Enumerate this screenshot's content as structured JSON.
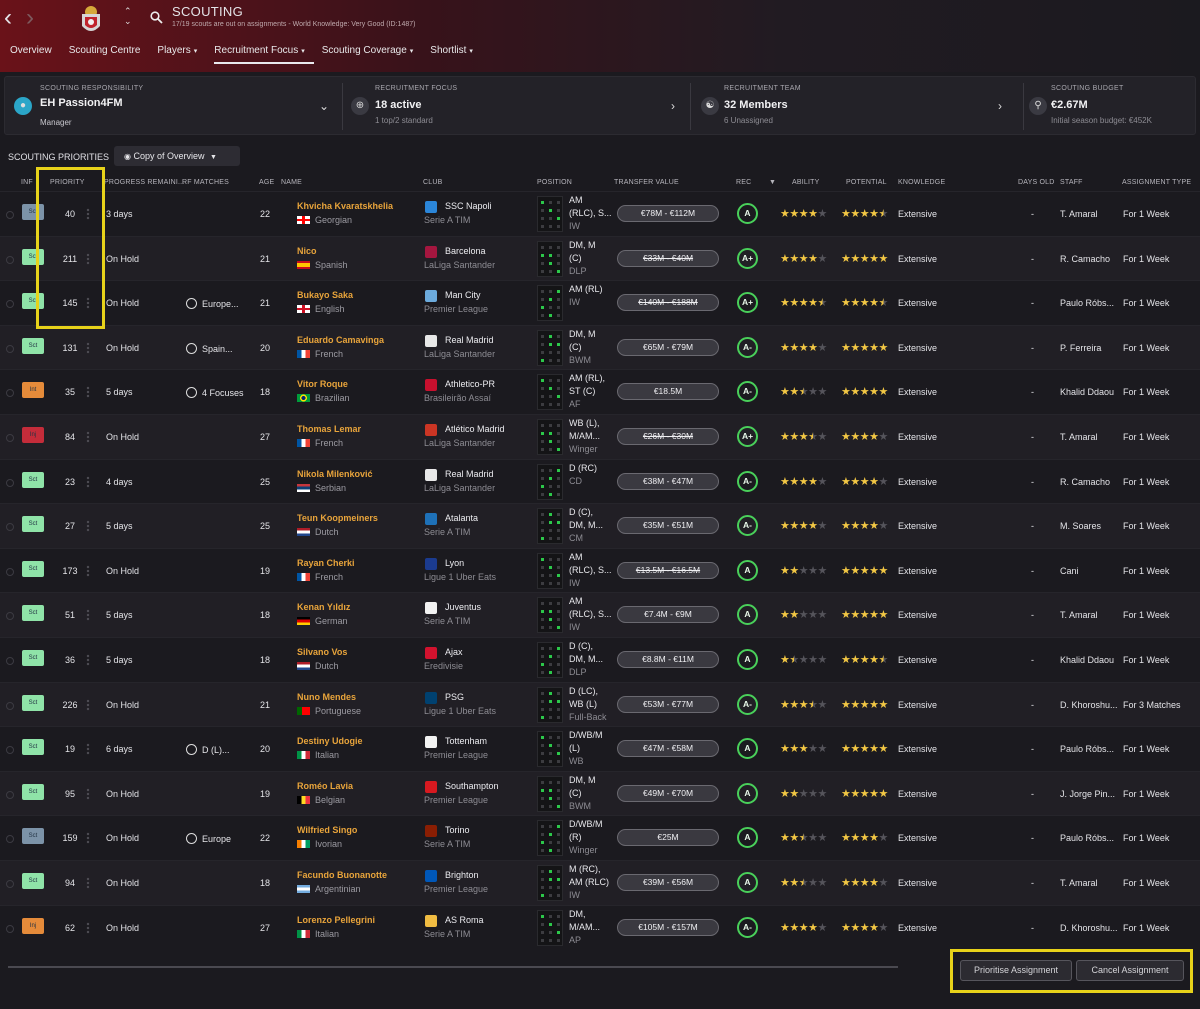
{
  "header": {
    "title": "SCOUTING",
    "subtitle": "17/19 scouts are out on assignments - World Knowledge: Very Good (ID:1487)"
  },
  "tabs": [
    {
      "label": "Overview",
      "caret": false
    },
    {
      "label": "Scouting Centre",
      "caret": false
    },
    {
      "label": "Players",
      "caret": true
    },
    {
      "label": "Recruitment Focus",
      "caret": true,
      "active": true
    },
    {
      "label": "Scouting Coverage",
      "caret": true
    },
    {
      "label": "Shortlist",
      "caret": true
    }
  ],
  "panel": {
    "responsibility": {
      "label": "SCOUTING RESPONSIBILITY",
      "value": "EH Passion4FM",
      "sub": "Manager"
    },
    "focus": {
      "label": "RECRUITMENT FOCUS",
      "value": "18 active",
      "sub": "1 top/2 standard"
    },
    "team": {
      "label": "RECRUITMENT TEAM",
      "value": "32 Members",
      "sub": "6 Unassigned"
    },
    "budget": {
      "label": "SCOUTING BUDGET",
      "value": "€2.67M",
      "sub": "Initial season budget: €452K"
    }
  },
  "section": {
    "label": "SCOUTING PRIORITIES",
    "view": "Copy of Overview"
  },
  "columns": {
    "inf": "INF",
    "priority": "PRIORITY",
    "progress": "PROGRESS REMAINI...",
    "rfm": "RF MATCHES",
    "age": "AGE",
    "name": "NAME",
    "club": "CLUB",
    "position": "POSITION",
    "transfer_value": "TRANSFER VALUE",
    "rec": "REC",
    "ability": "ABILITY",
    "potential": "POTENTIAL",
    "knowledge": "KNOWLEDGE",
    "days_old": "DAYS OLD",
    "staff": "STAFF",
    "assignment_type": "ASSIGNMENT TYPE"
  },
  "colors": {
    "accent_highlight": "#e7d21a",
    "player_name": "#e8a43b",
    "rec_ring": "#49d05a"
  },
  "rows": [
    {
      "rep": "Sct",
      "rep_color": "#7c93a8",
      "priority": "40",
      "progress": "3 days",
      "rfm": "",
      "age": "22",
      "name": "Khvicha Kvaratskhelia",
      "nationality": "Georgian",
      "flag": "georgia",
      "club": "SSC Napoli",
      "league": "Serie A TIM",
      "club_color": "#2b86d9",
      "pos1": "AM",
      "pos2": "(RLC), S...",
      "pos3": "IW",
      "tv": "€78M - €112M",
      "tv_strike": false,
      "rec": "A",
      "ability": 4,
      "potential": 4.5,
      "knowledge": "Extensive",
      "days_old": "-",
      "staff": "T. Amaral",
      "assignment": "For 1 Week"
    },
    {
      "rep": "Sct",
      "rep_color": "#8fe3a8",
      "priority": "211",
      "progress": "On Hold",
      "rfm": "",
      "age": "21",
      "name": "Nico",
      "nationality": "Spanish",
      "flag": "spain",
      "club": "Barcelona",
      "league": "LaLiga Santander",
      "club_color": "#a5163f",
      "pos1": "DM, M",
      "pos2": "(C)",
      "pos3": "DLP",
      "tv": "€33M - €40M",
      "tv_strike": true,
      "rec": "A+",
      "ability": 4,
      "potential": 5,
      "knowledge": "Extensive",
      "days_old": "-",
      "staff": "R. Camacho",
      "assignment": "For 1 Week"
    },
    {
      "rep": "Sct",
      "rep_color": "#8fe3a8",
      "priority": "145",
      "progress": "On Hold",
      "rfm": "Europe...",
      "age": "21",
      "name": "Bukayo Saka",
      "nationality": "English",
      "flag": "england",
      "club": "Man City",
      "league": "Premier League",
      "club_color": "#6cabdd",
      "pos1": "AM (RL)",
      "pos2": "",
      "pos3": "IW",
      "tv": "€140M - €188M",
      "tv_strike": true,
      "rec": "A+",
      "ability": 4.5,
      "potential": 4.5,
      "knowledge": "Extensive",
      "days_old": "-",
      "staff": "Paulo Róbs...",
      "assignment": "For 1 Week"
    },
    {
      "rep": "Sct",
      "rep_color": "#8fe3a8",
      "priority": "131",
      "progress": "On Hold",
      "rfm": "Spain...",
      "age": "20",
      "name": "Eduardo Camavinga",
      "nationality": "French",
      "flag": "france",
      "club": "Real Madrid",
      "league": "LaLiga Santander",
      "club_color": "#e8e8e8",
      "pos1": "DM, M",
      "pos2": "(C)",
      "pos3": "BWM",
      "tv": "€65M - €79M",
      "tv_strike": false,
      "rec": "A-",
      "ability": 4,
      "potential": 5,
      "knowledge": "Extensive",
      "days_old": "-",
      "staff": "P. Ferreira",
      "assignment": "For 1 Week"
    },
    {
      "rep": "Int",
      "rep_color": "#e58b3a",
      "priority": "35",
      "progress": "5 days",
      "rfm": "4 Focuses",
      "age": "18",
      "name": "Vitor Roque",
      "nationality": "Brazilian",
      "flag": "brazil",
      "club": "Athletico-PR",
      "league": "Brasileirão Assaí",
      "club_color": "#c8102e",
      "pos1": "AM (RL),",
      "pos2": "ST (C)",
      "pos3": "AF",
      "tv": "€18.5M",
      "tv_strike": false,
      "rec": "A-",
      "ability": 2.5,
      "potential": 5,
      "knowledge": "Extensive",
      "days_old": "-",
      "staff": "Khalid Ddaou",
      "assignment": "For 1 Week"
    },
    {
      "rep": "Inj",
      "rep_color": "#c42c3a",
      "priority": "84",
      "progress": "On Hold",
      "rfm": "",
      "age": "27",
      "name": "Thomas Lemar",
      "nationality": "French",
      "flag": "france",
      "club": "Atlético Madrid",
      "league": "LaLiga Santander",
      "club_color": "#cb3524",
      "pos1": "WB (L),",
      "pos2": "M/AM...",
      "pos3": "Winger",
      "tv": "€26M - €30M",
      "tv_strike": true,
      "rec": "A+",
      "ability": 3.5,
      "potential": 4,
      "knowledge": "Extensive",
      "days_old": "-",
      "staff": "T. Amaral",
      "assignment": "For 1 Week"
    },
    {
      "rep": "Sct",
      "rep_color": "#8fe3a8",
      "priority": "23",
      "progress": "4 days",
      "rfm": "",
      "age": "25",
      "name": "Nikola Milenković",
      "nationality": "Serbian",
      "flag": "serbia",
      "club": "Real Madrid",
      "league": "LaLiga Santander",
      "club_color": "#e8e8e8",
      "pos1": "D (RC)",
      "pos2": "",
      "pos3": "CD",
      "tv": "€38M - €47M",
      "tv_strike": false,
      "rec": "A-",
      "ability": 4,
      "potential": 4,
      "knowledge": "Extensive",
      "days_old": "-",
      "staff": "R. Camacho",
      "assignment": "For 1 Week"
    },
    {
      "rep": "Sct",
      "rep_color": "#8fe3a8",
      "priority": "27",
      "progress": "5 days",
      "rfm": "",
      "age": "25",
      "name": "Teun Koopmeiners",
      "nationality": "Dutch",
      "flag": "netherlands",
      "club": "Atalanta",
      "league": "Serie A TIM",
      "club_color": "#1e71b8",
      "pos1": "D (C),",
      "pos2": "DM, M...",
      "pos3": "CM",
      "tv": "€35M - €51M",
      "tv_strike": false,
      "rec": "A-",
      "ability": 4,
      "potential": 4,
      "knowledge": "Extensive",
      "days_old": "-",
      "staff": "M. Soares",
      "assignment": "For 1 Week"
    },
    {
      "rep": "Sct",
      "rep_color": "#8fe3a8",
      "priority": "173",
      "progress": "On Hold",
      "rfm": "",
      "age": "19",
      "name": "Rayan Cherki",
      "nationality": "French",
      "flag": "france",
      "club": "Lyon",
      "league": "Ligue 1 Uber Eats",
      "club_color": "#1b3b8f",
      "pos1": "AM",
      "pos2": "(RLC), S...",
      "pos3": "IW",
      "tv": "€13.5M - €16.5M",
      "tv_strike": true,
      "rec": "A",
      "ability": 2,
      "potential": 5,
      "knowledge": "Extensive",
      "days_old": "-",
      "staff": "Cani",
      "assignment": "For 1 Week"
    },
    {
      "rep": "Sct",
      "rep_color": "#8fe3a8",
      "priority": "51",
      "progress": "5 days",
      "rfm": "",
      "age": "18",
      "name": "Kenan Yıldız",
      "nationality": "German",
      "flag": "germany",
      "club": "Juventus",
      "league": "Serie A TIM",
      "club_color": "#f2f2f2",
      "pos1": "AM",
      "pos2": "(RLC), S...",
      "pos3": "IW",
      "tv": "€7.4M - €9M",
      "tv_strike": false,
      "rec": "A",
      "ability": 2,
      "potential": 5,
      "knowledge": "Extensive",
      "days_old": "-",
      "staff": "T. Amaral",
      "assignment": "For 1 Week"
    },
    {
      "rep": "Sct",
      "rep_color": "#8fe3a8",
      "priority": "36",
      "progress": "5 days",
      "rfm": "",
      "age": "18",
      "name": "Silvano Vos",
      "nationality": "Dutch",
      "flag": "netherlands",
      "club": "Ajax",
      "league": "Eredivisie",
      "club_color": "#d2122e",
      "pos1": "D (C),",
      "pos2": "DM, M...",
      "pos3": "DLP",
      "tv": "€8.8M - €11M",
      "tv_strike": false,
      "rec": "A",
      "ability": 1.5,
      "potential": 4.5,
      "knowledge": "Extensive",
      "days_old": "-",
      "staff": "Khalid Ddaou",
      "assignment": "For 1 Week"
    },
    {
      "rep": "Sct",
      "rep_color": "#8fe3a8",
      "priority": "226",
      "progress": "On Hold",
      "rfm": "",
      "age": "21",
      "name": "Nuno Mendes",
      "nationality": "Portuguese",
      "flag": "portugal",
      "club": "PSG",
      "league": "Ligue 1 Uber Eats",
      "club_color": "#004170",
      "pos1": "D (LC),",
      "pos2": "WB (L)",
      "pos3": "Full-Back",
      "tv": "€53M - €77M",
      "tv_strike": false,
      "rec": "A-",
      "ability": 3.5,
      "potential": 5,
      "knowledge": "Extensive",
      "days_old": "-",
      "staff": "D. Khoroshu...",
      "assignment": "For 3 Matches"
    },
    {
      "rep": "Sct",
      "rep_color": "#8fe3a8",
      "priority": "19",
      "progress": "6 days",
      "rfm": "D (L)...",
      "age": "20",
      "name": "Destiny Udogie",
      "nationality": "Italian",
      "flag": "italy",
      "club": "Tottenham",
      "league": "Premier League",
      "club_color": "#f2f2f2",
      "pos1": "D/WB/M",
      "pos2": "(L)",
      "pos3": "WB",
      "tv": "€47M - €58M",
      "tv_strike": false,
      "rec": "A",
      "ability": 3,
      "potential": 5,
      "knowledge": "Extensive",
      "days_old": "-",
      "staff": "Paulo Róbs...",
      "assignment": "For 1 Week"
    },
    {
      "rep": "Sct",
      "rep_color": "#8fe3a8",
      "priority": "95",
      "progress": "On Hold",
      "rfm": "",
      "age": "19",
      "name": "Roméo Lavia",
      "nationality": "Belgian",
      "flag": "belgium",
      "club": "Southampton",
      "league": "Premier League",
      "club_color": "#d71920",
      "pos1": "DM, M",
      "pos2": "(C)",
      "pos3": "BWM",
      "tv": "€49M - €70M",
      "tv_strike": false,
      "rec": "A",
      "ability": 2,
      "potential": 5,
      "knowledge": "Extensive",
      "days_old": "-",
      "staff": "J. Jorge Pin...",
      "assignment": "For 1 Week"
    },
    {
      "rep": "Sct",
      "rep_color": "#7c93a8",
      "priority": "159",
      "progress": "On Hold",
      "rfm": "Europe",
      "age": "22",
      "name": "Wilfried Singo",
      "nationality": "Ivorian",
      "flag": "ivory",
      "club": "Torino",
      "league": "Serie A TIM",
      "club_color": "#8a1e03",
      "pos1": "D/WB/M",
      "pos2": "(R)",
      "pos3": "Winger",
      "tv": "€25M",
      "tv_strike": false,
      "rec": "A",
      "ability": 2.5,
      "potential": 4,
      "knowledge": "Extensive",
      "days_old": "-",
      "staff": "Paulo Róbs...",
      "assignment": "For 1 Week"
    },
    {
      "rep": "Sct",
      "rep_color": "#8fe3a8",
      "priority": "94",
      "progress": "On Hold",
      "rfm": "",
      "age": "18",
      "name": "Facundo Buonanotte",
      "nationality": "Argentinian",
      "flag": "argentina",
      "club": "Brighton",
      "league": "Premier League",
      "club_color": "#0057b8",
      "pos1": "M (RC),",
      "pos2": "AM (RLC)",
      "pos3": "IW",
      "tv": "€39M - €56M",
      "tv_strike": false,
      "rec": "A",
      "ability": 2.5,
      "potential": 4,
      "knowledge": "Extensive",
      "days_old": "-",
      "staff": "T. Amaral",
      "assignment": "For 1 Week"
    },
    {
      "rep": "Inj",
      "rep_color": "#e58b3a",
      "priority": "62",
      "progress": "On Hold",
      "rfm": "",
      "age": "27",
      "name": "Lorenzo Pellegrini",
      "nationality": "Italian",
      "flag": "italy",
      "club": "AS Roma",
      "league": "Serie A TIM",
      "club_color": "#f0bc42",
      "pos1": "DM,",
      "pos2": "M/AM...",
      "pos3": "AP",
      "tv": "€105M - €157M",
      "tv_strike": false,
      "rec": "A-",
      "ability": 4,
      "potential": 4,
      "knowledge": "Extensive",
      "days_old": "-",
      "staff": "D. Khoroshu...",
      "assignment": "For 1 Week"
    }
  ],
  "buttons": {
    "prioritise": "Prioritise Assignment",
    "cancel": "Cancel Assignment"
  }
}
